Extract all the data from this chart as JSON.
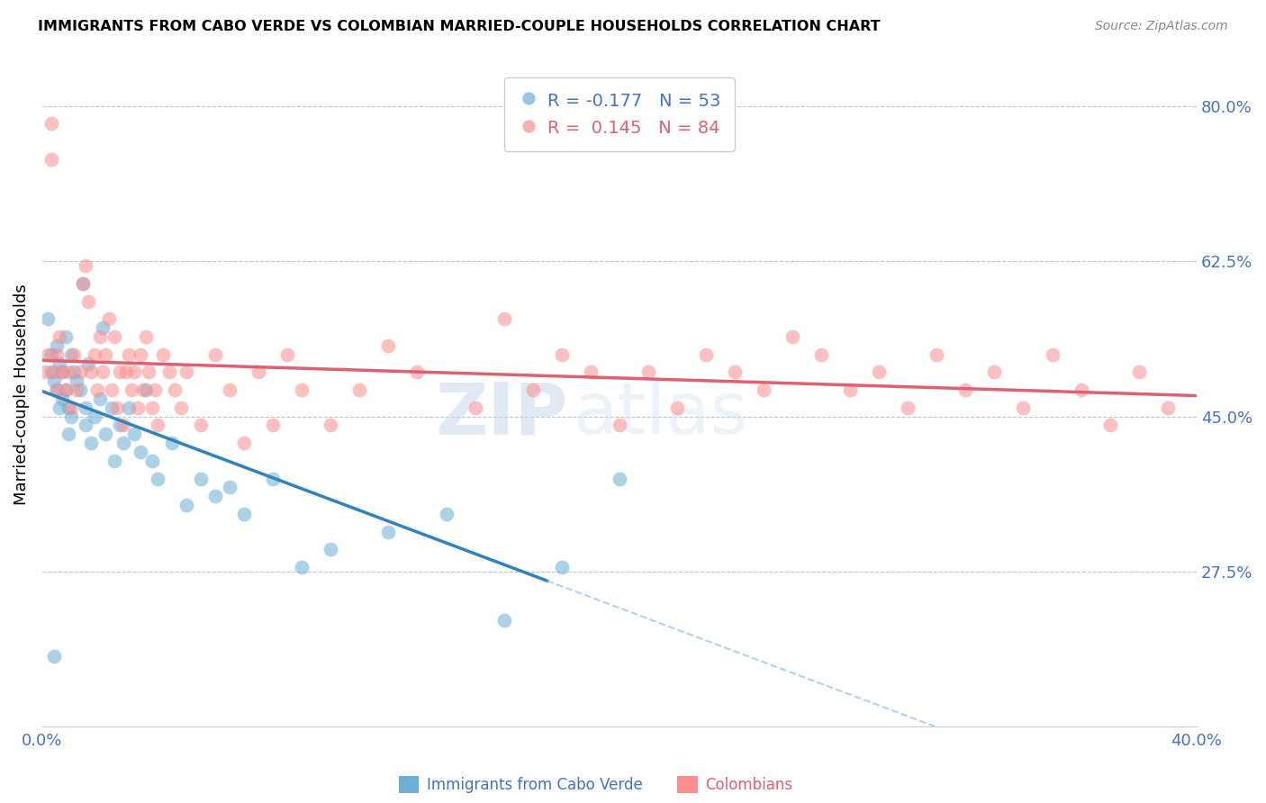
{
  "title": "IMMIGRANTS FROM CABO VERDE VS COLOMBIAN MARRIED-COUPLE HOUSEHOLDS CORRELATION CHART",
  "source": "Source: ZipAtlas.com",
  "ylabel": "Married-couple Households",
  "xlim": [
    0.0,
    0.4
  ],
  "ylim": [
    0.1,
    0.85
  ],
  "xticks": [
    0.0,
    0.05,
    0.1,
    0.15,
    0.2,
    0.25,
    0.3,
    0.35,
    0.4
  ],
  "xticklabels": [
    "0.0%",
    "",
    "",
    "",
    "",
    "",
    "",
    "",
    "40.0%"
  ],
  "yticks_right": [
    0.275,
    0.45,
    0.625,
    0.8
  ],
  "ytick_labels_right": [
    "27.5%",
    "45.0%",
    "62.5%",
    "80.0%"
  ],
  "legend_r1": "-0.177",
  "legend_n1": "53",
  "legend_r2": " 0.145",
  "legend_n2": "84",
  "blue_color": "#6baed6",
  "pink_color": "#fc8d8d",
  "trend_blue_color": "#3182bd",
  "trend_pink_color": "#e06070",
  "label1": "Immigrants from Cabo Verde",
  "label2": "Colombians",
  "watermark_zip": "ZIP",
  "watermark_atlas": "atlas",
  "cabo_verde_x": [
    0.002,
    0.003,
    0.003,
    0.004,
    0.005,
    0.005,
    0.006,
    0.006,
    0.007,
    0.007,
    0.008,
    0.008,
    0.009,
    0.009,
    0.01,
    0.01,
    0.011,
    0.012,
    0.013,
    0.014,
    0.015,
    0.015,
    0.016,
    0.017,
    0.018,
    0.02,
    0.021,
    0.022,
    0.024,
    0.025,
    0.027,
    0.028,
    0.03,
    0.032,
    0.034,
    0.036,
    0.038,
    0.04,
    0.045,
    0.05,
    0.055,
    0.06,
    0.065,
    0.07,
    0.08,
    0.09,
    0.1,
    0.12,
    0.14,
    0.16,
    0.18,
    0.2,
    0.004
  ],
  "cabo_verde_y": [
    0.56,
    0.5,
    0.52,
    0.49,
    0.48,
    0.53,
    0.51,
    0.46,
    0.5,
    0.47,
    0.54,
    0.48,
    0.46,
    0.43,
    0.52,
    0.45,
    0.5,
    0.49,
    0.48,
    0.6,
    0.44,
    0.46,
    0.51,
    0.42,
    0.45,
    0.47,
    0.55,
    0.43,
    0.46,
    0.4,
    0.44,
    0.42,
    0.46,
    0.43,
    0.41,
    0.48,
    0.4,
    0.38,
    0.42,
    0.35,
    0.38,
    0.36,
    0.37,
    0.34,
    0.38,
    0.28,
    0.3,
    0.32,
    0.34,
    0.22,
    0.28,
    0.38,
    0.18
  ],
  "colombian_x": [
    0.001,
    0.002,
    0.003,
    0.003,
    0.004,
    0.005,
    0.005,
    0.006,
    0.007,
    0.008,
    0.009,
    0.01,
    0.011,
    0.012,
    0.013,
    0.014,
    0.015,
    0.016,
    0.017,
    0.018,
    0.019,
    0.02,
    0.021,
    0.022,
    0.023,
    0.024,
    0.025,
    0.026,
    0.027,
    0.028,
    0.029,
    0.03,
    0.031,
    0.032,
    0.033,
    0.034,
    0.035,
    0.036,
    0.037,
    0.038,
    0.039,
    0.04,
    0.042,
    0.044,
    0.046,
    0.048,
    0.05,
    0.055,
    0.06,
    0.065,
    0.07,
    0.075,
    0.08,
    0.085,
    0.09,
    0.1,
    0.11,
    0.12,
    0.13,
    0.15,
    0.16,
    0.17,
    0.18,
    0.19,
    0.2,
    0.21,
    0.22,
    0.23,
    0.24,
    0.25,
    0.26,
    0.27,
    0.28,
    0.29,
    0.3,
    0.31,
    0.32,
    0.33,
    0.34,
    0.35,
    0.36,
    0.37,
    0.38,
    0.39
  ],
  "colombian_y": [
    0.5,
    0.52,
    0.78,
    0.74,
    0.5,
    0.48,
    0.52,
    0.54,
    0.5,
    0.48,
    0.5,
    0.46,
    0.52,
    0.48,
    0.5,
    0.6,
    0.62,
    0.58,
    0.5,
    0.52,
    0.48,
    0.54,
    0.5,
    0.52,
    0.56,
    0.48,
    0.54,
    0.46,
    0.5,
    0.44,
    0.5,
    0.52,
    0.48,
    0.5,
    0.46,
    0.52,
    0.48,
    0.54,
    0.5,
    0.46,
    0.48,
    0.44,
    0.52,
    0.5,
    0.48,
    0.46,
    0.5,
    0.44,
    0.52,
    0.48,
    0.42,
    0.5,
    0.44,
    0.52,
    0.48,
    0.44,
    0.48,
    0.53,
    0.5,
    0.46,
    0.56,
    0.48,
    0.52,
    0.5,
    0.44,
    0.5,
    0.46,
    0.52,
    0.5,
    0.48,
    0.54,
    0.52,
    0.48,
    0.5,
    0.46,
    0.52,
    0.48,
    0.5,
    0.46,
    0.52,
    0.48,
    0.44,
    0.5,
    0.46
  ]
}
